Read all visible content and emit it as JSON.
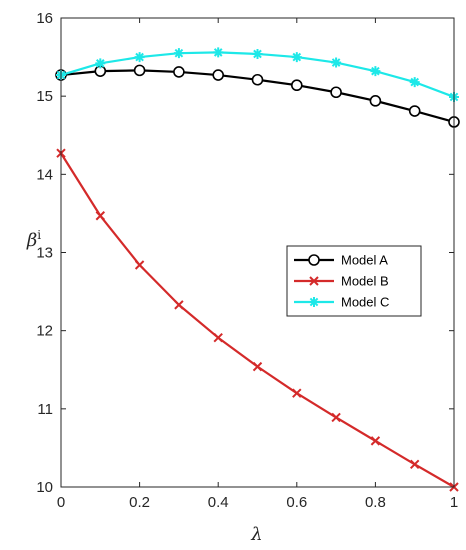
{
  "chart_data": {
    "type": "line",
    "title": "",
    "xlabel": "λ",
    "ylabel": "β",
    "ylabel_superscript": "i",
    "xlim": [
      0,
      1
    ],
    "ylim": [
      10,
      16
    ],
    "x_ticks": [
      0,
      0.2,
      0.4,
      0.6,
      0.8,
      1
    ],
    "x_tick_labels": [
      "0",
      "0.2",
      "0.4",
      "0.6",
      "0.8",
      "1"
    ],
    "y_ticks": [
      10,
      11,
      12,
      13,
      14,
      15,
      16
    ],
    "y_tick_labels": [
      "10",
      "11",
      "12",
      "13",
      "14",
      "15",
      "16"
    ],
    "grid": false,
    "legend_position": "center-right",
    "x": [
      0,
      0.1,
      0.2,
      0.3,
      0.4,
      0.5,
      0.6,
      0.7,
      0.8,
      0.9,
      1
    ],
    "series": [
      {
        "name": "Model A",
        "color": "#000000",
        "marker": "circle",
        "values": [
          15.27,
          15.32,
          15.33,
          15.31,
          15.27,
          15.21,
          15.14,
          15.05,
          14.94,
          14.81,
          14.67
        ]
      },
      {
        "name": "Model B",
        "color": "#d42a2a",
        "marker": "x",
        "values": [
          14.27,
          13.47,
          12.84,
          12.33,
          11.91,
          11.54,
          11.2,
          10.89,
          10.59,
          10.29,
          10.0
        ]
      },
      {
        "name": "Model C",
        "color": "#1de8e8",
        "marker": "star",
        "values": [
          15.27,
          15.42,
          15.5,
          15.55,
          15.56,
          15.54,
          15.5,
          15.43,
          15.32,
          15.18,
          14.99
        ]
      }
    ]
  }
}
